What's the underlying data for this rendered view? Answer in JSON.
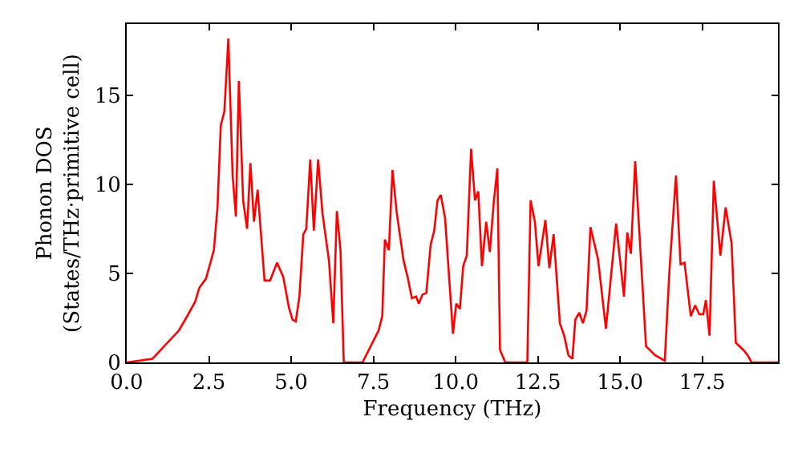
{
  "chart_data": {
    "type": "line",
    "xlabel": "Frequency (THz)",
    "ylabel": "Phonon DOS\n(States/THz·primitive cell)",
    "xlim": [
      0,
      19.8
    ],
    "ylim": [
      0,
      19
    ],
    "xticks": [
      {
        "value": 0,
        "label": "0.0"
      },
      {
        "value": 2.5,
        "label": "2.5"
      },
      {
        "value": 5,
        "label": "5.0"
      },
      {
        "value": 7.5,
        "label": "7.5"
      },
      {
        "value": 10,
        "label": "10.0"
      },
      {
        "value": 12.5,
        "label": "12.5"
      },
      {
        "value": 15,
        "label": "15.0"
      },
      {
        "value": 17.5,
        "label": "17.5"
      }
    ],
    "yticks": [
      0,
      5,
      10,
      15
    ],
    "grid": false,
    "marker": "none",
    "line_style": "solid",
    "series": [
      {
        "color": "#ff0000",
        "x": [
          0,
          0.78,
          1.59,
          1.84,
          2.08,
          2.21,
          2.41,
          2.65,
          2.76,
          2.86,
          2.97,
          3.09,
          3.22,
          3.32,
          3.41,
          3.54,
          3.66,
          3.76,
          3.87,
          3.98,
          4.19,
          4.36,
          4.57,
          4.76,
          4.93,
          5.04,
          5.14,
          5.25,
          5.37,
          5.46,
          5.58,
          5.69,
          5.82,
          5.95,
          6.15,
          6.28,
          6.39,
          6.5,
          6.6,
          7.17,
          7.66,
          7.77,
          7.85,
          7.97,
          8.08,
          8.21,
          8.42,
          8.54,
          8.67,
          8.8,
          8.88,
          8.99,
          9.11,
          9.24,
          9.35,
          9.45,
          9.55,
          9.68,
          9.92,
          10.02,
          10.13,
          10.23,
          10.34,
          10.47,
          10.59,
          10.69,
          10.8,
          10.93,
          11.04,
          11.16,
          11.27,
          11.35,
          11.51,
          12.18,
          12.28,
          12.41,
          12.52,
          12.73,
          12.85,
          12.98,
          13.17,
          13.3,
          13.43,
          13.55,
          13.64,
          13.76,
          13.87,
          13.98,
          14.1,
          14.33,
          14.57,
          14.88,
          15.12,
          15.22,
          15.33,
          15.46,
          15.79,
          16.07,
          16.36,
          16.5,
          16.7,
          16.84,
          16.96,
          17.15,
          17.28,
          17.41,
          17.53,
          17.61,
          17.72,
          17.85,
          18.05,
          18.21,
          18.39,
          18.52,
          18.75,
          18.88,
          19.0,
          19.8
        ],
        "values": [
          0,
          0.2,
          1.8,
          2.6,
          3.4,
          4.2,
          4.7,
          6.3,
          8.7,
          13.3,
          14.1,
          18.2,
          10.5,
          8.2,
          15.8,
          9.1,
          7.5,
          11.2,
          7.9,
          9.7,
          4.6,
          4.6,
          5.6,
          4.8,
          3.1,
          2.4,
          2.3,
          3.7,
          7.2,
          7.5,
          11.4,
          7.4,
          11.4,
          8.4,
          5.7,
          2.2,
          8.5,
          6.3,
          0,
          0,
          1.8,
          2.6,
          6.9,
          6.3,
          10.8,
          8.4,
          5.7,
          4.8,
          3.6,
          3.7,
          3.3,
          3.8,
          3.9,
          6.6,
          7.4,
          9.1,
          9.4,
          8.1,
          1.6,
          3.3,
          3.0,
          5.4,
          6.0,
          12.0,
          9.1,
          9.6,
          5.4,
          7.9,
          6.2,
          9.0,
          10.9,
          0.7,
          0,
          0,
          9.1,
          7.9,
          5.4,
          8.0,
          5.3,
          7.2,
          2.2,
          1.5,
          0.4,
          0.2,
          2.4,
          2.8,
          2.2,
          2.9,
          7.6,
          5.8,
          1.9,
          7.8,
          3.7,
          7.3,
          6.1,
          11.3,
          0.9,
          0.4,
          0.1,
          5.1,
          10.5,
          5.5,
          5.6,
          2.6,
          3.2,
          2.7,
          2.7,
          3.5,
          1.5,
          10.2,
          6.0,
          8.7,
          6.7,
          1.1,
          0.7,
          0.4,
          0,
          0
        ]
      }
    ]
  }
}
